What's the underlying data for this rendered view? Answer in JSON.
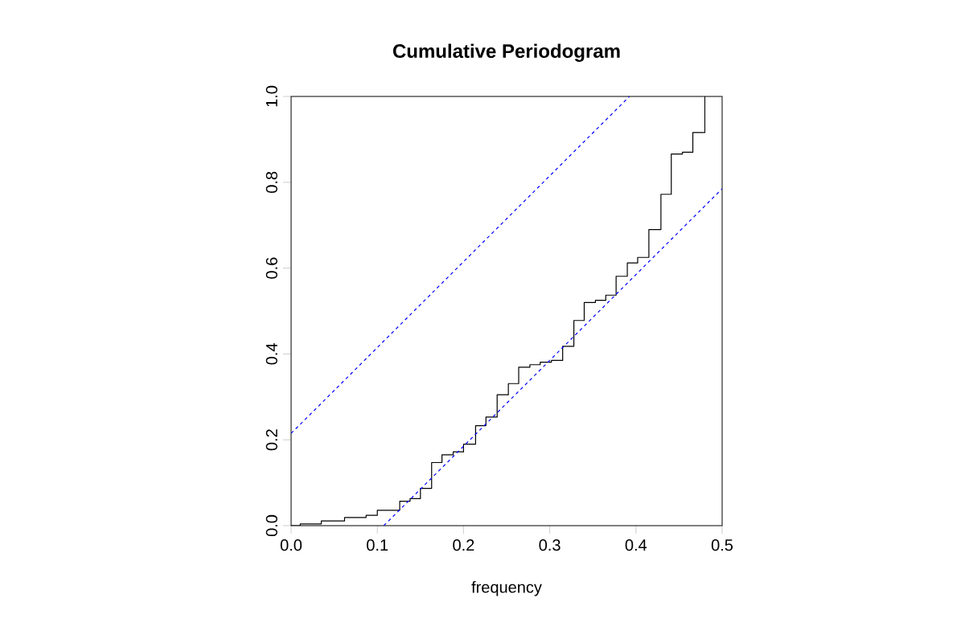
{
  "chart_data": {
    "type": "step",
    "title": "Cumulative Periodogram",
    "xlabel": "frequency",
    "xlim": [
      0,
      0.5
    ],
    "ylim": [
      0,
      1
    ],
    "xticks": [
      {
        "value": 0,
        "label": "0.0"
      },
      0.1,
      0.2,
      0.3,
      0.4,
      0.5
    ],
    "yticks": [
      {
        "value": 0,
        "label": "0.0"
      },
      0.2,
      0.4,
      0.6,
      0.8,
      {
        "value": 1,
        "label": "1.0"
      }
    ],
    "series": [
      {
        "type": "step",
        "color": "#000000",
        "line_style": "solid",
        "x": [
          0,
          0.0106,
          0.035,
          0.062,
          0.087,
          0.1,
          0.126,
          0.138,
          0.15,
          0.163,
          0.175,
          0.188,
          0.2,
          0.214,
          0.226,
          0.239,
          0.252,
          0.264,
          0.277,
          0.289,
          0.302,
          0.315,
          0.328,
          0.34,
          0.353,
          0.365,
          0.377,
          0.39,
          0.402,
          0.415,
          0.429,
          0.441,
          0.454,
          0.466,
          0.48
        ],
        "values": [
          0,
          0.004,
          0.011,
          0.019,
          0.024,
          0.036,
          0.057,
          0.063,
          0.087,
          0.147,
          0.165,
          0.172,
          0.19,
          0.233,
          0.253,
          0.305,
          0.331,
          0.369,
          0.375,
          0.381,
          0.385,
          0.418,
          0.478,
          0.52,
          0.525,
          0.537,
          0.581,
          0.612,
          0.625,
          0.69,
          0.772,
          0.866,
          0.87,
          0.916,
          1
        ]
      },
      {
        "type": "line",
        "color": "#0000ff",
        "line_style": "dashed",
        "x": [
          0,
          0.3925
        ],
        "values": [
          0.215,
          1
        ]
      },
      {
        "type": "line",
        "color": "#0000ff",
        "line_style": "dashed",
        "x": [
          0.1075,
          0.5
        ],
        "values": [
          0,
          0.785
        ]
      }
    ]
  }
}
